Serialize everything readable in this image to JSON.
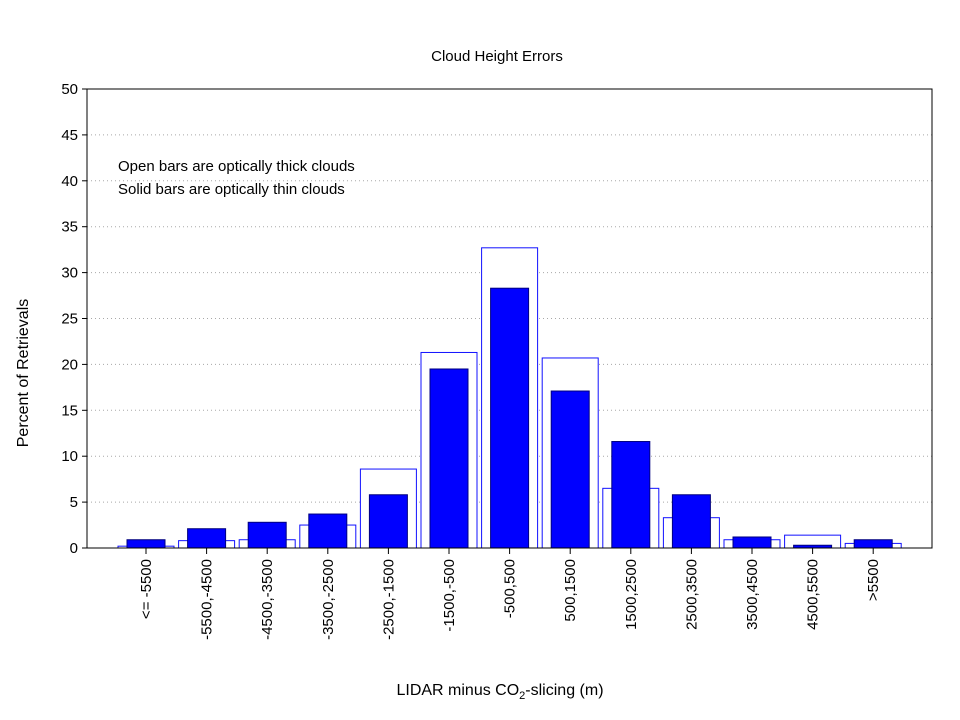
{
  "chart_data": {
    "type": "bar",
    "title": "Cloud Height Errors",
    "xlabel_parts": [
      "LIDAR minus CO",
      "2",
      "-slicing (m)"
    ],
    "ylabel": "Percent of Retrievals",
    "ylim": [
      0,
      50
    ],
    "yticks": [
      "0",
      "5",
      "10",
      "15",
      "20",
      "25",
      "30",
      "35",
      "40",
      "45",
      "50"
    ],
    "grid": true,
    "annotations": [
      "Open bars are optically thick clouds",
      "Solid bars are optically thin clouds"
    ],
    "categories": [
      "<= -5500",
      "-5500,-4500",
      "-4500,-3500",
      "-3500,-2500",
      "-2500,-1500",
      "-1500,-500",
      "-500,500",
      "500,1500",
      "1500,2500",
      "2500,3500",
      "3500,4500",
      "4500,5500",
      ">5500"
    ],
    "series": [
      {
        "style": "open",
        "color": "#1010ff",
        "values": [
          0.2,
          0.8,
          0.9,
          2.5,
          8.6,
          21.3,
          32.7,
          20.7,
          6.5,
          3.3,
          0.9,
          1.4,
          0.5
        ]
      },
      {
        "style": "solid",
        "color": "#0000ff",
        "values": [
          0.9,
          2.1,
          2.8,
          3.7,
          5.8,
          19.5,
          28.3,
          17.1,
          11.6,
          5.8,
          1.2,
          0.3,
          0.9
        ]
      }
    ]
  }
}
